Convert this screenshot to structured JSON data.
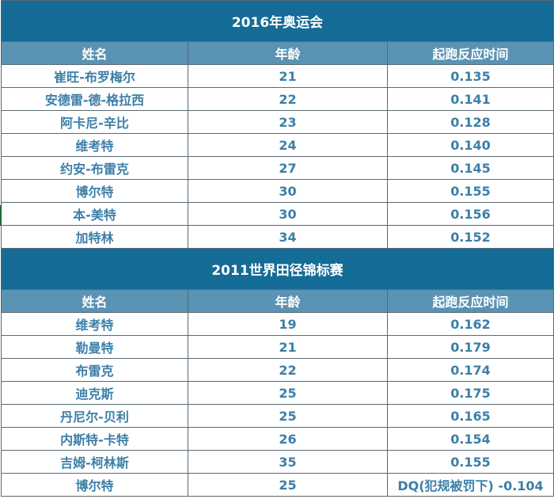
{
  "sections": [
    {
      "title": "2016年奥运会",
      "headers": [
        "姓名",
        "年龄",
        "起跑反应时间"
      ],
      "rows": [
        [
          "崔旺-布罗梅尔",
          "21",
          "0.135"
        ],
        [
          "安德雷-德-格拉西",
          "22",
          "0.141"
        ],
        [
          "阿卡尼-辛比",
          "23",
          "0.128"
        ],
        [
          "维考特",
          "24",
          "0.140"
        ],
        [
          "约安-布雷克",
          "27",
          "0.145"
        ],
        [
          "博尔特",
          "30",
          "0.155"
        ],
        [
          "本-美特",
          "30",
          "0.156"
        ],
        [
          "加特林",
          "34",
          "0.152"
        ]
      ]
    },
    {
      "title": "2011世界田径锦标赛",
      "headers": [
        "姓名",
        "年龄",
        "起跑反应时间"
      ],
      "rows": [
        [
          "维考特",
          "19",
          "0.162"
        ],
        [
          "勒曼特",
          "21",
          "0.179"
        ],
        [
          "布雷克",
          "22",
          "0.174"
        ],
        [
          "迪克斯",
          "25",
          "0.175"
        ],
        [
          "丹尼尔-贝利",
          "25",
          "0.165"
        ],
        [
          "内斯特-卡特",
          "26",
          "0.154"
        ],
        [
          "吉姆-柯林斯",
          "35",
          "0.155"
        ],
        [
          "博尔特",
          "25",
          "DQ(犯规被罚下) -0.104"
        ]
      ]
    }
  ]
}
